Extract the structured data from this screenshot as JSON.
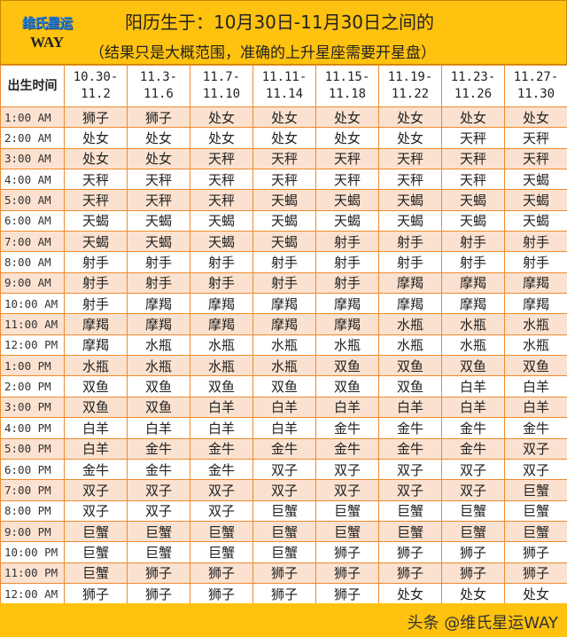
{
  "logo": {
    "cn": "维氏星运",
    "en": "WAY"
  },
  "title": "阳历生于：10月30日-11月30日之间的",
  "subtitle": "（结果只是大概范围，准确的上升星座需要开星盘）",
  "table": {
    "corner": "出生时间",
    "columns": [
      [
        "10.30-",
        "11.2"
      ],
      [
        "11.3-",
        "11.6"
      ],
      [
        "11.7-",
        "11.10"
      ],
      [
        "11.11-",
        "11.14"
      ],
      [
        "11.15-",
        "11.18"
      ],
      [
        "11.19-",
        "11.22"
      ],
      [
        "11.23-",
        "11.26"
      ],
      [
        "11.27-",
        "11.30"
      ]
    ],
    "rows": [
      [
        "1:00 AM",
        "狮子",
        "狮子",
        "处女",
        "处女",
        "处女",
        "处女",
        "处女",
        "处女"
      ],
      [
        "2:00 AM",
        "处女",
        "处女",
        "处女",
        "处女",
        "处女",
        "处女",
        "天秤",
        "天秤"
      ],
      [
        "3:00 AM",
        "处女",
        "处女",
        "天秤",
        "天秤",
        "天秤",
        "天秤",
        "天秤",
        "天秤"
      ],
      [
        "4:00 AM",
        "天秤",
        "天秤",
        "天秤",
        "天秤",
        "天秤",
        "天秤",
        "天秤",
        "天蝎"
      ],
      [
        "5:00 AM",
        "天秤",
        "天秤",
        "天秤",
        "天蝎",
        "天蝎",
        "天蝎",
        "天蝎",
        "天蝎"
      ],
      [
        "6:00 AM",
        "天蝎",
        "天蝎",
        "天蝎",
        "天蝎",
        "天蝎",
        "天蝎",
        "天蝎",
        "天蝎"
      ],
      [
        "7:00 AM",
        "天蝎",
        "天蝎",
        "天蝎",
        "天蝎",
        "射手",
        "射手",
        "射手",
        "射手"
      ],
      [
        "8:00 AM",
        "射手",
        "射手",
        "射手",
        "射手",
        "射手",
        "射手",
        "射手",
        "射手"
      ],
      [
        "9:00 AM",
        "射手",
        "射手",
        "射手",
        "射手",
        "射手",
        "摩羯",
        "摩羯",
        "摩羯"
      ],
      [
        "10:00 AM",
        "射手",
        "摩羯",
        "摩羯",
        "摩羯",
        "摩羯",
        "摩羯",
        "摩羯",
        "摩羯"
      ],
      [
        "11:00 AM",
        "摩羯",
        "摩羯",
        "摩羯",
        "摩羯",
        "摩羯",
        "水瓶",
        "水瓶",
        "水瓶"
      ],
      [
        "12:00 PM",
        "摩羯",
        "水瓶",
        "水瓶",
        "水瓶",
        "水瓶",
        "水瓶",
        "水瓶",
        "水瓶"
      ],
      [
        "1:00 PM",
        "水瓶",
        "水瓶",
        "水瓶",
        "水瓶",
        "双鱼",
        "双鱼",
        "双鱼",
        "双鱼"
      ],
      [
        "2:00 PM",
        "双鱼",
        "双鱼",
        "双鱼",
        "双鱼",
        "双鱼",
        "双鱼",
        "白羊",
        "白羊"
      ],
      [
        "3:00 PM",
        "双鱼",
        "双鱼",
        "白羊",
        "白羊",
        "白羊",
        "白羊",
        "白羊",
        "白羊"
      ],
      [
        "4:00 PM",
        "白羊",
        "白羊",
        "白羊",
        "白羊",
        "金牛",
        "金牛",
        "金牛",
        "金牛"
      ],
      [
        "5:00 PM",
        "白羊",
        "金牛",
        "金牛",
        "金牛",
        "金牛",
        "金牛",
        "金牛",
        "双子"
      ],
      [
        "6:00 PM",
        "金牛",
        "金牛",
        "金牛",
        "双子",
        "双子",
        "双子",
        "双子",
        "双子"
      ],
      [
        "7:00 PM",
        "双子",
        "双子",
        "双子",
        "双子",
        "双子",
        "双子",
        "双子",
        "巨蟹"
      ],
      [
        "8:00 PM",
        "双子",
        "双子",
        "双子",
        "巨蟹",
        "巨蟹",
        "巨蟹",
        "巨蟹",
        "巨蟹"
      ],
      [
        "9:00 PM",
        "巨蟹",
        "巨蟹",
        "巨蟹",
        "巨蟹",
        "巨蟹",
        "巨蟹",
        "巨蟹",
        "巨蟹"
      ],
      [
        "10:00 PM",
        "巨蟹",
        "巨蟹",
        "巨蟹",
        "巨蟹",
        "狮子",
        "狮子",
        "狮子",
        "狮子"
      ],
      [
        "11:00 PM",
        "巨蟹",
        "狮子",
        "狮子",
        "狮子",
        "狮子",
        "狮子",
        "狮子",
        "狮子"
      ],
      [
        "12:00 AM",
        "狮子",
        "狮子",
        "狮子",
        "狮子",
        "狮子",
        "处女",
        "处女",
        "处女"
      ]
    ]
  },
  "watermark": "头条 @维氏星运WAY",
  "colors": {
    "header": "#FFC20E",
    "border": "#EE8A2E",
    "row_alt": "#FBE2D0"
  }
}
